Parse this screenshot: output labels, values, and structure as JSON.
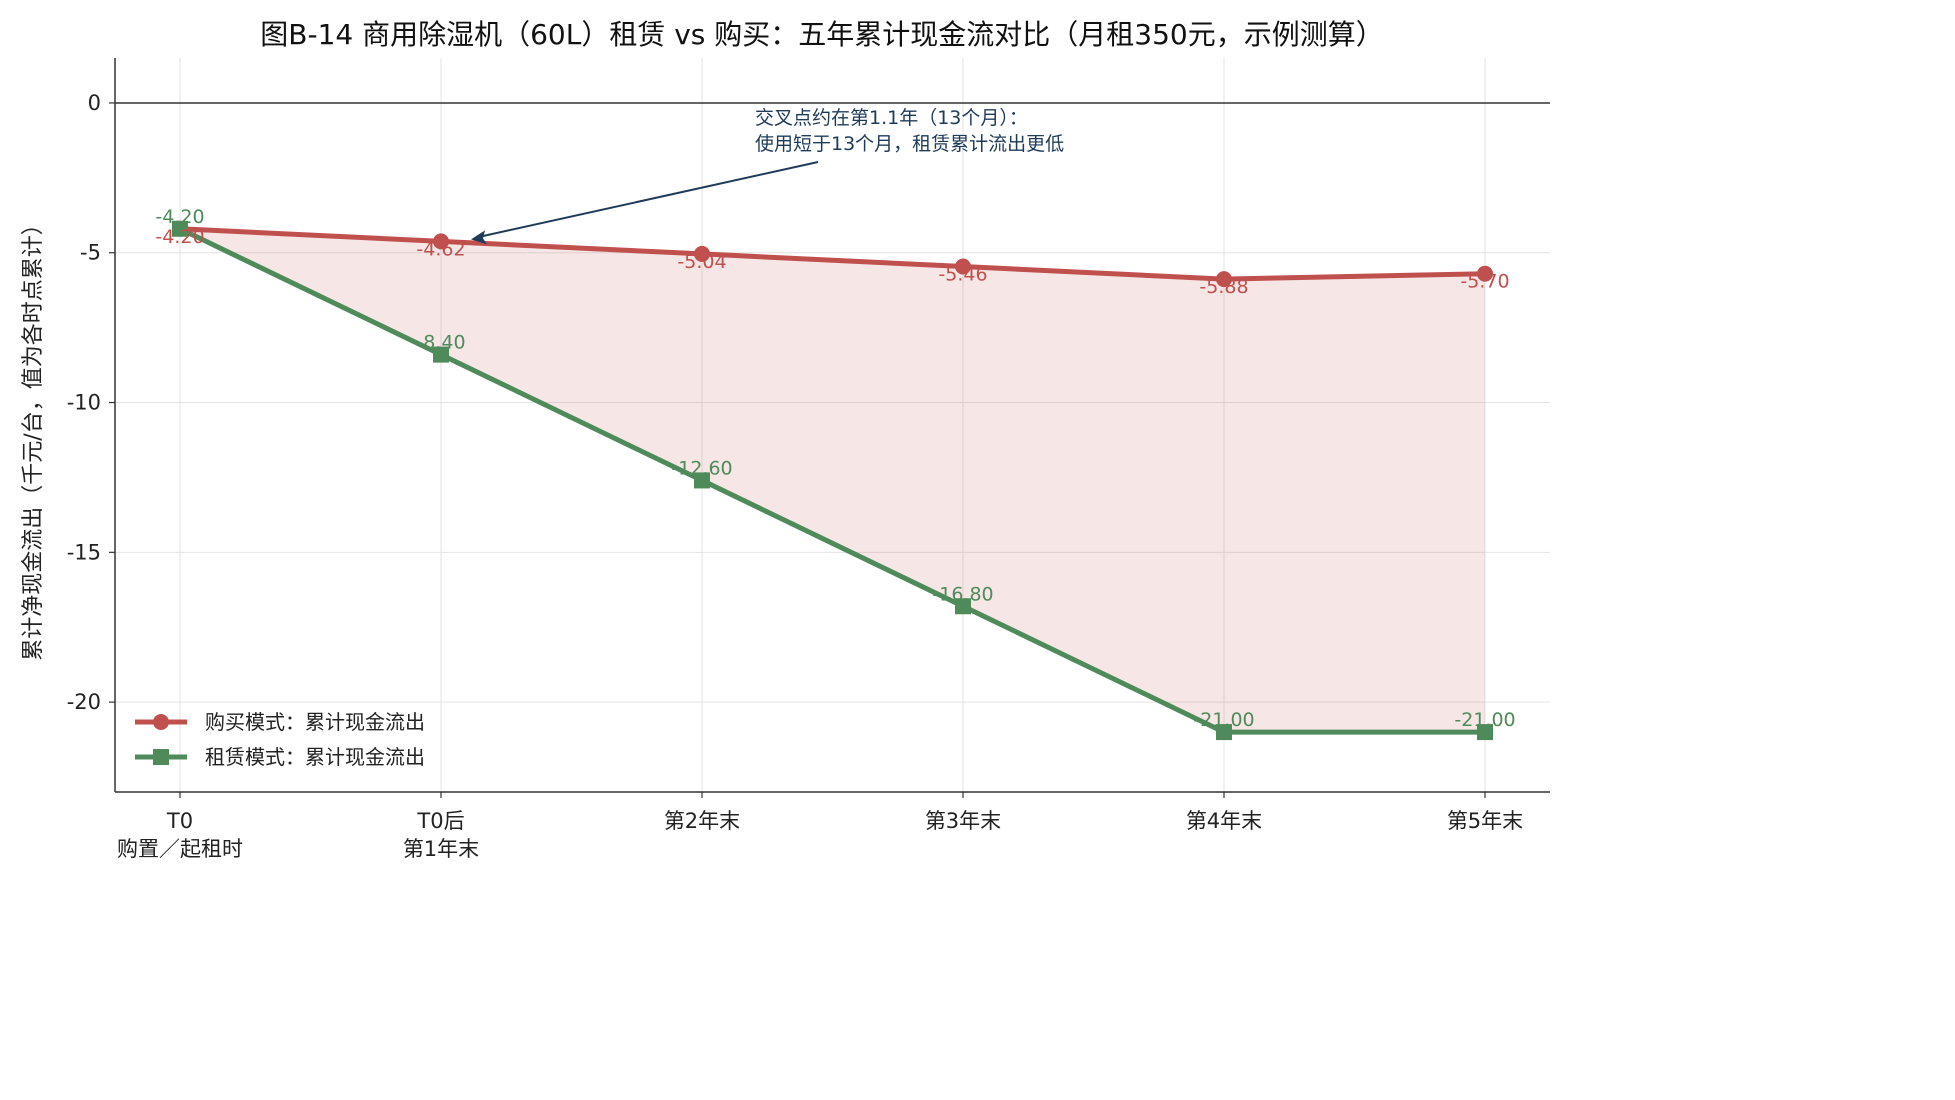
{
  "chart_data": {
    "type": "line",
    "title": "图B-14  商用除湿机（60L）租赁 vs 购买：五年累计现金流对比（月租350元，示例测算）",
    "xlabel": "",
    "ylabel": "累计净现金流出（千元/台，值为各时点累计）",
    "categories": [
      [
        "T0",
        "购置／起租时"
      ],
      [
        "T0后",
        "第1年末"
      ],
      [
        "第2年末"
      ],
      [
        "第3年末"
      ],
      [
        "第4年末"
      ],
      [
        "第5年末"
      ]
    ],
    "ylim": [
      -23,
      1.5
    ],
    "yticks": [
      0,
      -5,
      -10,
      -15,
      -20
    ],
    "ytick_labels": [
      "0",
      "-5",
      "-10",
      "-15",
      "-20"
    ],
    "grid": true,
    "legend_position": "lower-left",
    "series": [
      {
        "name": "购买模式：累计现金流出",
        "color": "#c0504d",
        "marker": "circle",
        "values": [
          -4.2,
          -4.62,
          -5.04,
          -5.46,
          -5.88,
          -5.7
        ],
        "labels": [
          "-4.20",
          "-4.62",
          "-5.04",
          "-5.46",
          "-5.88",
          "-5.70"
        ]
      },
      {
        "name": "租赁模式：累计现金流出",
        "color": "#4f8a5b",
        "marker": "square",
        "values": [
          -4.2,
          -8.4,
          -12.6,
          -16.8,
          -21.0,
          -21.0
        ],
        "labels": [
          "-4.20",
          "-8.40",
          "-12.60",
          "-16.80",
          "-21.00",
          "-21.00"
        ]
      }
    ],
    "fill_between": {
      "color": "#c0504d",
      "opacity": 0.14
    },
    "annotation": {
      "lines": [
        "交叉点约在第1.1年（13个月）：",
        "使用短于13个月，租赁累计流出更低"
      ],
      "arrow_target": {
        "x_index": 1,
        "y": -4.62
      },
      "color": "#1f3b5a"
    }
  }
}
